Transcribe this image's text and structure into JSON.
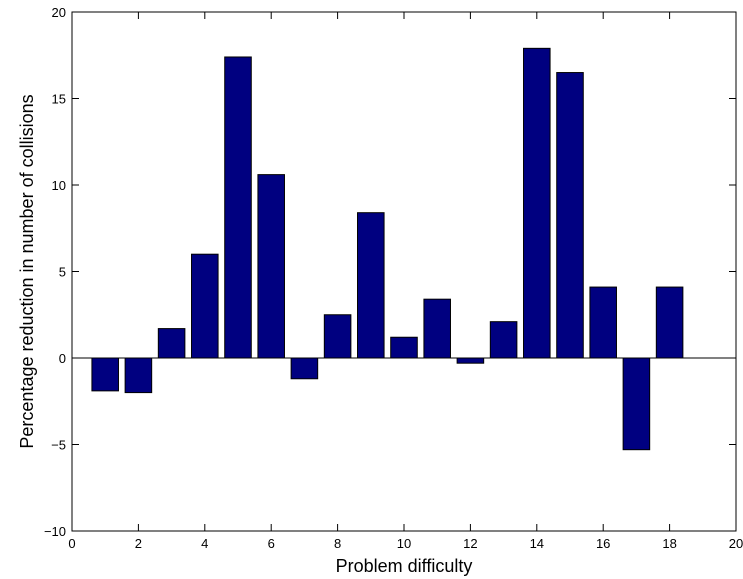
{
  "chart_data": {
    "type": "bar",
    "title": "",
    "xlabel": "Problem difficulty",
    "ylabel": "Percentage reduction in number of collisions",
    "x": [
      1,
      2,
      3,
      4,
      5,
      6,
      7,
      8,
      9,
      10,
      11,
      12,
      13,
      14,
      15,
      16,
      17,
      18
    ],
    "values": [
      -1.9,
      -2.0,
      1.7,
      6.0,
      17.4,
      10.6,
      -1.2,
      2.5,
      8.4,
      1.2,
      3.4,
      -0.3,
      2.1,
      17.9,
      16.5,
      4.1,
      -5.3,
      4.1
    ],
    "xlim": [
      0,
      20
    ],
    "ylim": [
      -10,
      20
    ],
    "xticks": [
      0,
      2,
      4,
      6,
      8,
      10,
      12,
      14,
      16,
      18,
      20
    ],
    "yticks": [
      -10,
      -5,
      0,
      5,
      10,
      15,
      20
    ],
    "xtick_labels": [
      "0",
      "2",
      "4",
      "6",
      "8",
      "10",
      "12",
      "14",
      "16",
      "18",
      "20"
    ],
    "ytick_labels": [
      "−10",
      "−5",
      "0",
      "5",
      "10",
      "15",
      "20"
    ],
    "bar_width": 0.8,
    "grid": false,
    "legend": "none",
    "colors": {
      "bar": "#000080"
    }
  }
}
